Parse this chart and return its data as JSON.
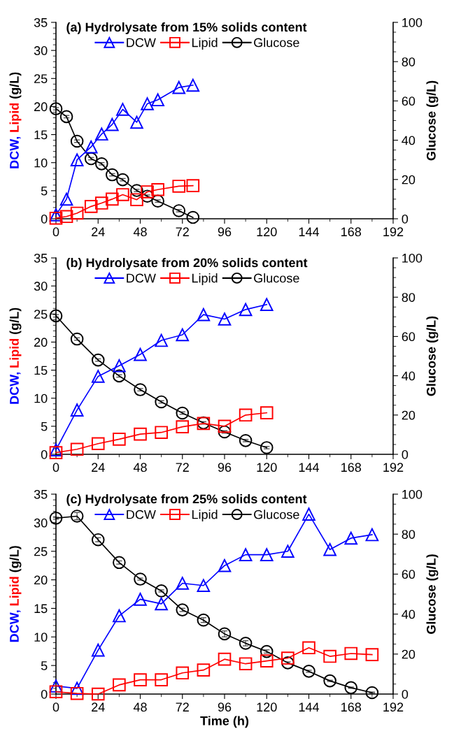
{
  "chart_data": [
    {
      "type": "line",
      "title": "(a) Hydrolysate from 15% solids content",
      "ylabel": "DCW, Lipid (g/L)",
      "y2label": "Glucose (g/L)",
      "x": [
        0,
        6,
        12,
        20,
        26,
        32,
        38,
        46,
        52,
        58,
        70,
        78
      ],
      "series": [
        {
          "name": "DCW",
          "color": "#0000ff",
          "marker": "triangle",
          "values": [
            0.7,
            3.5,
            10.5,
            12.8,
            15.1,
            16.8,
            19.5,
            17.2,
            20.5,
            21.2,
            23.4,
            23.8
          ]
        },
        {
          "name": "Lipid",
          "color": "#ff0000",
          "marker": "square",
          "values": [
            0.1,
            0.4,
            1.0,
            2.2,
            2.8,
            3.5,
            4.3,
            3.4,
            4.8,
            5.2,
            5.8,
            5.9
          ]
        },
        {
          "name": "Glucose",
          "color": "#000000",
          "marker": "circle",
          "axis": "y2",
          "values": [
            56,
            52,
            39.5,
            30.6,
            28,
            22.4,
            19.9,
            14.4,
            11.5,
            9,
            4.1,
            0.7
          ],
          "errors": [
            0.6,
            0.6,
            0.6,
            0.6,
            0.6,
            0.6,
            0.6,
            0.6,
            0.6,
            0.6,
            0.6,
            null
          ]
        }
      ],
      "xlim": [
        0,
        192
      ],
      "xticks": [
        0,
        24,
        48,
        72,
        96,
        120,
        144,
        168,
        192
      ],
      "ylim": [
        0,
        35
      ],
      "yticks": [
        0,
        5,
        10,
        15,
        20,
        25,
        30,
        35
      ],
      "y2lim": [
        0,
        100
      ],
      "y2ticks": [
        0,
        20,
        40,
        60,
        80,
        100
      ],
      "legend": "top",
      "grid": false,
      "line_style": "solid"
    },
    {
      "type": "line",
      "title": "(b) Hydrolysate from 20% solids content",
      "ylabel": "DCW, Lipid (g/L)",
      "y2label": "Glucose (g/L)",
      "x": [
        0,
        12,
        24,
        36,
        48,
        60,
        72,
        84,
        96,
        108,
        120
      ],
      "series": [
        {
          "name": "DCW",
          "color": "#0000ff",
          "marker": "triangle",
          "values": [
            0.8,
            7.9,
            13.9,
            15.8,
            17.8,
            20.3,
            21.3,
            24.9,
            24.1,
            25.8,
            26.7
          ]
        },
        {
          "name": "Lipid",
          "color": "#ff0000",
          "marker": "square",
          "values": [
            0.3,
            0.9,
            1.9,
            2.7,
            3.6,
            3.9,
            4.9,
            5.5,
            5.0,
            7.0,
            7.4
          ]
        },
        {
          "name": "Glucose",
          "color": "#000000",
          "marker": "circle",
          "axis": "y2",
          "values": [
            70.5,
            58.7,
            48,
            39.9,
            32.9,
            26.7,
            21.0,
            16.0,
            11.4,
            7.0,
            3.4
          ],
          "errors": [
            0.6,
            0.6,
            0.6,
            0.6,
            0.6,
            0.6,
            0.6,
            0.6,
            0.6,
            0.6,
            0.6
          ]
        }
      ],
      "xlim": [
        0,
        192
      ],
      "xticks": [
        0,
        24,
        48,
        72,
        96,
        120,
        144,
        168,
        192
      ],
      "ylim": [
        0,
        35
      ],
      "yticks": [
        0,
        5,
        10,
        15,
        20,
        25,
        30,
        35
      ],
      "y2lim": [
        0,
        100
      ],
      "y2ticks": [
        0,
        20,
        40,
        60,
        80,
        100
      ],
      "legend": "top",
      "grid": false,
      "line_style": "solid"
    },
    {
      "type": "line",
      "title": "(c) Hydrolysate from 25% solids content",
      "xlabel": "Time (h)",
      "ylabel": "DCW, Lipid (g/L)",
      "y2label": "Glucose (g/L)",
      "x": [
        0,
        12,
        24,
        36,
        48,
        60,
        72,
        84,
        96,
        108,
        120,
        132,
        144,
        156,
        168,
        180
      ],
      "series": [
        {
          "name": "DCW",
          "color": "#0000ff",
          "marker": "triangle",
          "values": [
            1.4,
            1.0,
            7.7,
            13.7,
            16.6,
            15.8,
            19.4,
            19.0,
            22.5,
            24.4,
            24.4,
            25.0,
            31.5,
            25.3,
            27.3,
            27.9
          ]
        },
        {
          "name": "Lipid",
          "color": "#ff0000",
          "marker": "square",
          "values": [
            0.4,
            0.1,
            0,
            1.6,
            2.5,
            2.5,
            3.7,
            4.2,
            6.1,
            5.3,
            5.8,
            6.3,
            8.1,
            6.6,
            7.1,
            6.9
          ]
        },
        {
          "name": "Glucose",
          "color": "#000000",
          "marker": "circle",
          "axis": "y2",
          "values": [
            88.0,
            89.0,
            77.2,
            65.8,
            57.5,
            51.6,
            42.1,
            37.0,
            30.1,
            25.4,
            21.3,
            15.6,
            11.4,
            6.6,
            3.2,
            0.7
          ],
          "errors": [
            0.5,
            1.8,
            1.0,
            0.8,
            0.5,
            0.5,
            0.8,
            1.2,
            1.5,
            1.3,
            0.8,
            0.5,
            0.5,
            0.3,
            0.3,
            0.3
          ]
        }
      ],
      "xlim": [
        0,
        192
      ],
      "xticks": [
        0,
        24,
        48,
        72,
        96,
        120,
        144,
        168,
        192
      ],
      "ylim": [
        0,
        35
      ],
      "yticks": [
        0,
        5,
        10,
        15,
        20,
        25,
        30,
        35
      ],
      "y2lim": [
        0,
        100
      ],
      "y2ticks": [
        0,
        20,
        40,
        60,
        80,
        100
      ],
      "legend": "top",
      "grid": false,
      "line_style": "solid"
    }
  ]
}
